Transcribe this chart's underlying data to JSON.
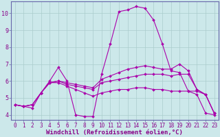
{
  "background_color": "#cce8ea",
  "grid_color": "#aacccc",
  "line_color": "#aa00aa",
  "spine_color": "#6666aa",
  "xlim": [
    -0.5,
    23.5
  ],
  "ylim": [
    3.7,
    10.7
  ],
  "xticks": [
    0,
    1,
    2,
    3,
    4,
    5,
    6,
    7,
    8,
    9,
    10,
    11,
    12,
    13,
    14,
    15,
    16,
    17,
    18,
    19,
    20,
    21,
    22,
    23
  ],
  "yticks": [
    4,
    5,
    6,
    7,
    8,
    9,
    10
  ],
  "xlabel": "Windchill (Refroidissement éolien,°C)",
  "lines": [
    {
      "x": [
        0,
        1,
        2,
        3,
        4,
        5,
        6,
        7,
        8,
        9,
        10,
        11,
        12,
        13,
        14,
        15,
        16,
        17,
        18,
        19,
        20,
        21,
        22,
        23
      ],
      "y": [
        4.6,
        4.5,
        4.4,
        5.3,
        6.0,
        6.8,
        6.0,
        4.0,
        3.9,
        3.9,
        6.4,
        8.2,
        10.1,
        10.2,
        10.4,
        10.3,
        9.6,
        8.2,
        6.6,
        6.5,
        5.4,
        5.2,
        4.1,
        4.0
      ]
    },
    {
      "x": [
        0,
        1,
        2,
        3,
        4,
        5,
        6,
        7,
        8,
        9,
        10,
        11,
        12,
        13,
        14,
        15,
        16,
        17,
        18,
        19,
        20,
        21,
        22,
        23
      ],
      "y": [
        4.6,
        4.5,
        4.6,
        5.3,
        5.9,
        6.0,
        5.9,
        5.8,
        5.7,
        5.6,
        6.1,
        6.3,
        6.5,
        6.7,
        6.8,
        6.9,
        6.8,
        6.7,
        6.7,
        7.0,
        6.6,
        5.5,
        5.2,
        4.1
      ]
    },
    {
      "x": [
        0,
        1,
        2,
        3,
        4,
        5,
        6,
        7,
        8,
        9,
        10,
        11,
        12,
        13,
        14,
        15,
        16,
        17,
        18,
        19,
        20,
        21,
        22,
        23
      ],
      "y": [
        4.6,
        4.5,
        4.6,
        5.3,
        5.9,
        6.0,
        5.8,
        5.7,
        5.6,
        5.5,
        5.9,
        6.0,
        6.1,
        6.2,
        6.3,
        6.4,
        6.4,
        6.4,
        6.3,
        6.4,
        6.4,
        5.5,
        5.2,
        4.1
      ]
    },
    {
      "x": [
        0,
        1,
        2,
        3,
        4,
        5,
        6,
        7,
        8,
        9,
        10,
        11,
        12,
        13,
        14,
        15,
        16,
        17,
        18,
        19,
        20,
        21,
        22,
        23
      ],
      "y": [
        4.6,
        4.5,
        4.6,
        5.3,
        5.9,
        5.9,
        5.7,
        5.5,
        5.3,
        5.1,
        5.3,
        5.4,
        5.5,
        5.5,
        5.6,
        5.6,
        5.5,
        5.5,
        5.4,
        5.4,
        5.4,
        5.4,
        5.2,
        4.1
      ]
    }
  ],
  "markersize": 2.0,
  "linewidth": 0.8,
  "tick_fontsize": 5.5,
  "xlabel_fontsize": 6.5
}
